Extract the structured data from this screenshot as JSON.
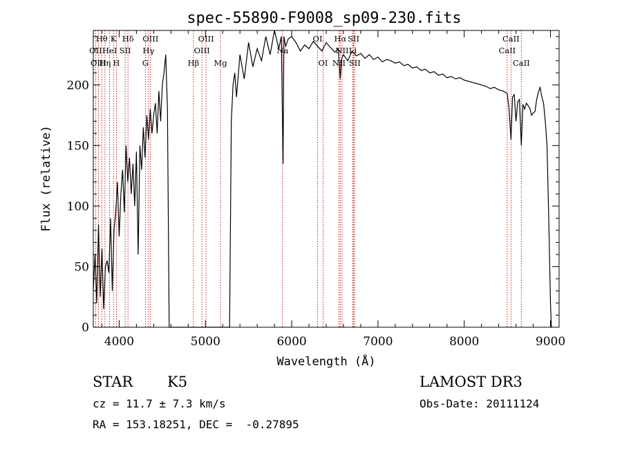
{
  "chart_data": {
    "type": "line",
    "title": "spec-55890-F9008_sp09-230.fits",
    "xlabel": "Wavelength (Å)",
    "ylabel": "Flux (relative)",
    "xlim": [
      3700,
      9100
    ],
    "ylim": [
      0,
      245
    ],
    "x_ticks": [
      4000,
      5000,
      6000,
      7000,
      8000,
      9000
    ],
    "y_ticks": [
      0,
      50,
      100,
      150,
      200
    ],
    "grid": false,
    "colors": {
      "spectrum": "#000000",
      "lines": "#cc0000",
      "axes": "#000000"
    },
    "series": [
      {
        "x": [
          3700,
          3720,
          3740,
          3760,
          3780,
          3800,
          3820,
          3840,
          3860,
          3880,
          3900,
          3920,
          3940,
          3960,
          3980,
          4000,
          4020,
          4040,
          4060,
          4080,
          4100,
          4120,
          4140,
          4160,
          4180,
          4200,
          4220,
          4240,
          4260,
          4280,
          4300,
          4320,
          4340,
          4360,
          4380,
          4400,
          4420,
          4440,
          4460,
          4480,
          4500,
          4520,
          4540,
          4560,
          4580,
          4600,
          5280,
          5300,
          5320,
          5340,
          5360,
          5400,
          5450,
          5500,
          5550,
          5600,
          5650,
          5700,
          5750,
          5800,
          5850,
          5880,
          5900,
          5910,
          5930,
          5960,
          6000,
          6050,
          6100,
          6150,
          6200,
          6250,
          6300,
          6350,
          6400,
          6450,
          6500,
          6540,
          6563,
          6580,
          6600,
          6650,
          6700,
          6750,
          6800,
          6850,
          6900,
          6950,
          7000,
          7050,
          7100,
          7150,
          7200,
          7250,
          7300,
          7350,
          7400,
          7450,
          7500,
          7550,
          7600,
          7650,
          7700,
          7750,
          7800,
          7850,
          7900,
          7950,
          8000,
          8050,
          8100,
          8150,
          8200,
          8250,
          8300,
          8350,
          8400,
          8450,
          8498,
          8520,
          8542,
          8560,
          8580,
          8600,
          8620,
          8640,
          8662,
          8680,
          8700,
          8720,
          8740,
          8760,
          8780,
          8800,
          8820,
          8840,
          8860,
          8880,
          8900,
          8920,
          8940,
          8960,
          8980,
          9000,
          9010,
          9020
        ],
        "y": [
          30,
          60,
          20,
          85,
          25,
          65,
          15,
          50,
          55,
          45,
          90,
          30,
          80,
          95,
          120,
          75,
          110,
          130,
          95,
          150,
          120,
          140,
          110,
          135,
          100,
          145,
          60,
          150,
          130,
          165,
          140,
          175,
          155,
          180,
          160,
          175,
          185,
          160,
          195,
          170,
          200,
          210,
          225,
          180,
          0,
          0,
          0,
          170,
          200,
          210,
          190,
          225,
          205,
          235,
          215,
          230,
          220,
          240,
          225,
          245,
          230,
          240,
          135,
          240,
          232,
          238,
          240,
          235,
          228,
          233,
          230,
          236,
          232,
          228,
          235,
          231,
          227,
          230,
          205,
          222,
          225,
          220,
          228,
          224,
          226,
          222,
          225,
          221,
          223,
          219,
          221,
          220,
          218,
          219,
          216,
          217,
          214,
          215,
          212,
          213,
          210,
          211,
          208,
          209,
          206,
          207,
          205,
          206,
          204,
          203,
          202,
          201,
          200,
          199,
          197,
          198,
          196,
          195,
          193,
          180,
          155,
          190,
          192,
          170,
          186,
          188,
          150,
          184,
          180,
          185,
          183,
          181,
          175,
          177,
          178,
          188,
          194,
          198,
          190,
          185,
          170,
          150,
          90,
          20,
          0,
          0
        ]
      }
    ],
    "spectral_lines": [
      {
        "name": "Hθ",
        "wave": 3798,
        "row": 1
      },
      {
        "name": "K",
        "wave": 3934,
        "row": 1
      },
      {
        "name": "Hδ",
        "wave": 4102,
        "row": 1
      },
      {
        "name": "OIII",
        "wave": 4363,
        "row": 1
      },
      {
        "name": "OIII",
        "wave": 5007,
        "row": 1
      },
      {
        "name": "OI",
        "wave": 6300,
        "row": 1
      },
      {
        "name": "Hα",
        "wave": 6563,
        "row": 1
      },
      {
        "name": "SII",
        "wave": 6717,
        "row": 1
      },
      {
        "name": "CaII",
        "wave": 8542,
        "row": 1
      },
      {
        "name": "OII",
        "wave": 3727,
        "row": 2
      },
      {
        "name": "HeI",
        "wave": 3889,
        "row": 2
      },
      {
        "name": "SII",
        "wave": 4069,
        "row": 2
      },
      {
        "name": "Hγ",
        "wave": 4340,
        "row": 2
      },
      {
        "name": "OIII",
        "wave": 4959,
        "row": 2
      },
      {
        "name": "Na",
        "wave": 5893,
        "row": 2
      },
      {
        "name": "NII",
        "wave": 6584,
        "row": 2
      },
      {
        "name": "Li",
        "wave": 6708,
        "row": 2
      },
      {
        "name": "CaII",
        "wave": 8498,
        "row": 2
      },
      {
        "name": "OIII",
        "wave": 3760,
        "row": 3
      },
      {
        "name": "Hη",
        "wave": 3835,
        "row": 3
      },
      {
        "name": "H",
        "wave": 3968,
        "row": 3
      },
      {
        "name": "G",
        "wave": 4304,
        "row": 3
      },
      {
        "name": "Hβ",
        "wave": 4861,
        "row": 3
      },
      {
        "name": "Mg",
        "wave": 5175,
        "row": 3
      },
      {
        "name": "OI",
        "wave": 6364,
        "row": 3
      },
      {
        "name": "NII",
        "wave": 6548,
        "row": 3
      },
      {
        "name": "SII",
        "wave": 6731,
        "row": 3
      },
      {
        "name": "CaII",
        "wave": 8662,
        "row": 3
      }
    ]
  },
  "info": {
    "class": "STAR",
    "subclass": "K5",
    "survey": "LAMOST DR3",
    "cz": "cz = 11.7 ± 7.3 km/s",
    "obs_date": "Obs-Date: 20111124",
    "coords": "RA = 153.18251, DEC =  -0.27895"
  }
}
